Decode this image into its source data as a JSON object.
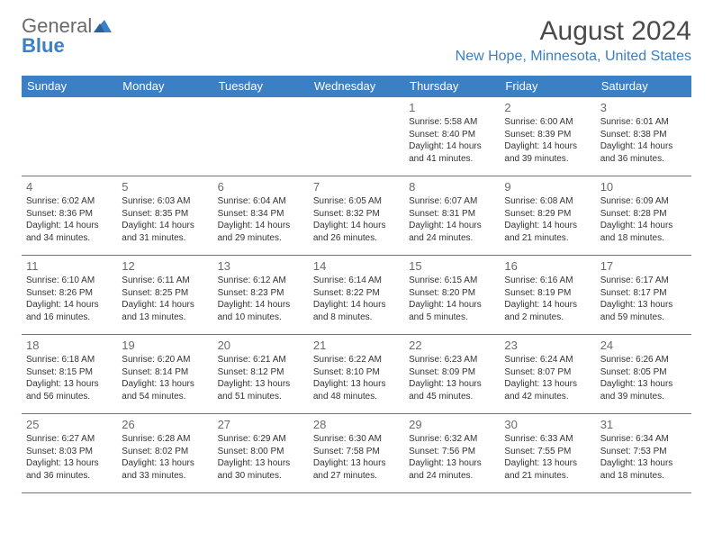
{
  "logo": {
    "text_gray": "General",
    "text_blue": "Blue",
    "triangle_color": "#3b7fc4"
  },
  "header": {
    "month_title": "August 2024",
    "location": "New Hope, Minnesota, United States"
  },
  "styling": {
    "header_bg": "#3b7fc4",
    "header_text_color": "#ffffff",
    "cell_border_color": "#3b7fc4",
    "day_num_color": "#6a6a6a",
    "body_text_color": "#333333",
    "location_color": "#3b7fc4",
    "month_title_color": "#4a4a4a",
    "header_fontsize": 13,
    "daynum_fontsize": 13,
    "info_fontsize": 10,
    "month_title_fontsize": 30,
    "location_fontsize": 16
  },
  "weekdays": [
    "Sunday",
    "Monday",
    "Tuesday",
    "Wednesday",
    "Thursday",
    "Friday",
    "Saturday"
  ],
  "weeks": [
    [
      null,
      null,
      null,
      null,
      {
        "n": "1",
        "sr": "Sunrise: 5:58 AM",
        "ss": "Sunset: 8:40 PM",
        "dl": "Daylight: 14 hours and 41 minutes."
      },
      {
        "n": "2",
        "sr": "Sunrise: 6:00 AM",
        "ss": "Sunset: 8:39 PM",
        "dl": "Daylight: 14 hours and 39 minutes."
      },
      {
        "n": "3",
        "sr": "Sunrise: 6:01 AM",
        "ss": "Sunset: 8:38 PM",
        "dl": "Daylight: 14 hours and 36 minutes."
      }
    ],
    [
      {
        "n": "4",
        "sr": "Sunrise: 6:02 AM",
        "ss": "Sunset: 8:36 PM",
        "dl": "Daylight: 14 hours and 34 minutes."
      },
      {
        "n": "5",
        "sr": "Sunrise: 6:03 AM",
        "ss": "Sunset: 8:35 PM",
        "dl": "Daylight: 14 hours and 31 minutes."
      },
      {
        "n": "6",
        "sr": "Sunrise: 6:04 AM",
        "ss": "Sunset: 8:34 PM",
        "dl": "Daylight: 14 hours and 29 minutes."
      },
      {
        "n": "7",
        "sr": "Sunrise: 6:05 AM",
        "ss": "Sunset: 8:32 PM",
        "dl": "Daylight: 14 hours and 26 minutes."
      },
      {
        "n": "8",
        "sr": "Sunrise: 6:07 AM",
        "ss": "Sunset: 8:31 PM",
        "dl": "Daylight: 14 hours and 24 minutes."
      },
      {
        "n": "9",
        "sr": "Sunrise: 6:08 AM",
        "ss": "Sunset: 8:29 PM",
        "dl": "Daylight: 14 hours and 21 minutes."
      },
      {
        "n": "10",
        "sr": "Sunrise: 6:09 AM",
        "ss": "Sunset: 8:28 PM",
        "dl": "Daylight: 14 hours and 18 minutes."
      }
    ],
    [
      {
        "n": "11",
        "sr": "Sunrise: 6:10 AM",
        "ss": "Sunset: 8:26 PM",
        "dl": "Daylight: 14 hours and 16 minutes."
      },
      {
        "n": "12",
        "sr": "Sunrise: 6:11 AM",
        "ss": "Sunset: 8:25 PM",
        "dl": "Daylight: 14 hours and 13 minutes."
      },
      {
        "n": "13",
        "sr": "Sunrise: 6:12 AM",
        "ss": "Sunset: 8:23 PM",
        "dl": "Daylight: 14 hours and 10 minutes."
      },
      {
        "n": "14",
        "sr": "Sunrise: 6:14 AM",
        "ss": "Sunset: 8:22 PM",
        "dl": "Daylight: 14 hours and 8 minutes."
      },
      {
        "n": "15",
        "sr": "Sunrise: 6:15 AM",
        "ss": "Sunset: 8:20 PM",
        "dl": "Daylight: 14 hours and 5 minutes."
      },
      {
        "n": "16",
        "sr": "Sunrise: 6:16 AM",
        "ss": "Sunset: 8:19 PM",
        "dl": "Daylight: 14 hours and 2 minutes."
      },
      {
        "n": "17",
        "sr": "Sunrise: 6:17 AM",
        "ss": "Sunset: 8:17 PM",
        "dl": "Daylight: 13 hours and 59 minutes."
      }
    ],
    [
      {
        "n": "18",
        "sr": "Sunrise: 6:18 AM",
        "ss": "Sunset: 8:15 PM",
        "dl": "Daylight: 13 hours and 56 minutes."
      },
      {
        "n": "19",
        "sr": "Sunrise: 6:20 AM",
        "ss": "Sunset: 8:14 PM",
        "dl": "Daylight: 13 hours and 54 minutes."
      },
      {
        "n": "20",
        "sr": "Sunrise: 6:21 AM",
        "ss": "Sunset: 8:12 PM",
        "dl": "Daylight: 13 hours and 51 minutes."
      },
      {
        "n": "21",
        "sr": "Sunrise: 6:22 AM",
        "ss": "Sunset: 8:10 PM",
        "dl": "Daylight: 13 hours and 48 minutes."
      },
      {
        "n": "22",
        "sr": "Sunrise: 6:23 AM",
        "ss": "Sunset: 8:09 PM",
        "dl": "Daylight: 13 hours and 45 minutes."
      },
      {
        "n": "23",
        "sr": "Sunrise: 6:24 AM",
        "ss": "Sunset: 8:07 PM",
        "dl": "Daylight: 13 hours and 42 minutes."
      },
      {
        "n": "24",
        "sr": "Sunrise: 6:26 AM",
        "ss": "Sunset: 8:05 PM",
        "dl": "Daylight: 13 hours and 39 minutes."
      }
    ],
    [
      {
        "n": "25",
        "sr": "Sunrise: 6:27 AM",
        "ss": "Sunset: 8:03 PM",
        "dl": "Daylight: 13 hours and 36 minutes."
      },
      {
        "n": "26",
        "sr": "Sunrise: 6:28 AM",
        "ss": "Sunset: 8:02 PM",
        "dl": "Daylight: 13 hours and 33 minutes."
      },
      {
        "n": "27",
        "sr": "Sunrise: 6:29 AM",
        "ss": "Sunset: 8:00 PM",
        "dl": "Daylight: 13 hours and 30 minutes."
      },
      {
        "n": "28",
        "sr": "Sunrise: 6:30 AM",
        "ss": "Sunset: 7:58 PM",
        "dl": "Daylight: 13 hours and 27 minutes."
      },
      {
        "n": "29",
        "sr": "Sunrise: 6:32 AM",
        "ss": "Sunset: 7:56 PM",
        "dl": "Daylight: 13 hours and 24 minutes."
      },
      {
        "n": "30",
        "sr": "Sunrise: 6:33 AM",
        "ss": "Sunset: 7:55 PM",
        "dl": "Daylight: 13 hours and 21 minutes."
      },
      {
        "n": "31",
        "sr": "Sunrise: 6:34 AM",
        "ss": "Sunset: 7:53 PM",
        "dl": "Daylight: 13 hours and 18 minutes."
      }
    ]
  ]
}
